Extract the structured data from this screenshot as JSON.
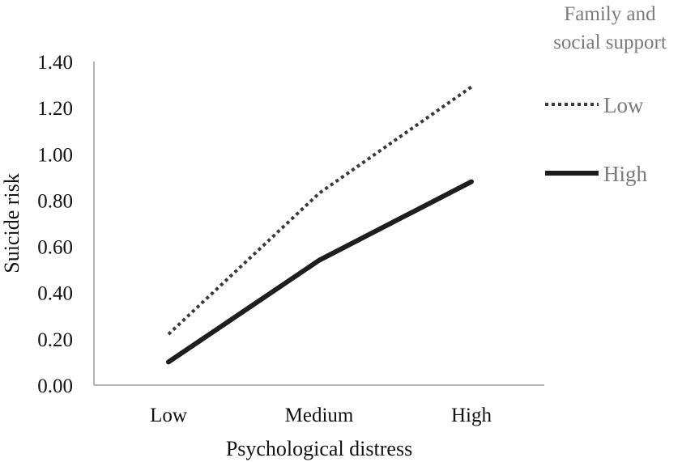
{
  "chart_data": {
    "type": "line",
    "categories": [
      "Low",
      "Medium",
      "High"
    ],
    "xlabel": "Psychological distress",
    "ylabel": "Suicide risk",
    "ylim": [
      0,
      1.4
    ],
    "yticks": [
      "0.00",
      "0.20",
      "0.40",
      "0.60",
      "0.80",
      "1.00",
      "1.20",
      "1.40"
    ],
    "yticks_values": [
      0,
      0.2,
      0.4,
      0.6,
      0.8,
      1.0,
      1.2,
      1.4
    ],
    "grid": false,
    "legend": {
      "title_lines": [
        "Family and",
        "social support"
      ],
      "placement": "right"
    },
    "series": [
      {
        "name": "Low",
        "values": [
          0.22,
          0.83,
          1.29
        ],
        "style": "dotted",
        "color": "#3a3a3a"
      },
      {
        "name": "High",
        "values": [
          0.1,
          0.54,
          0.88
        ],
        "style": "solid",
        "color": "#1e1e1e"
      }
    ]
  }
}
